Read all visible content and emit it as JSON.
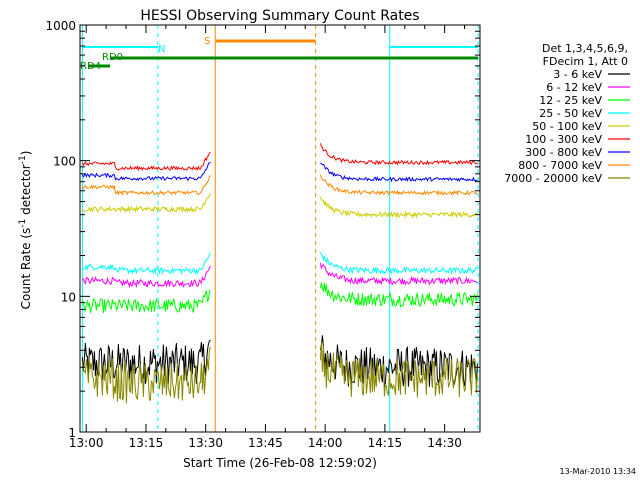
{
  "chart_data": {
    "type": "line",
    "title": "HESSI Observing Summary Count Rates",
    "ylabel_main": "Count Rate (s",
    "ylabel_sup1": "-1",
    "ylabel_mid": " detector",
    "ylabel_sup2": "-1",
    "ylabel_end": ")",
    "xlabel": "Start Time (26-Feb-08 12:59:02)",
    "footer": "13-Mar-2010 13:34",
    "y_scale": "log",
    "ylim": [
      1,
      1000
    ],
    "y_ticks": [
      {
        "value": 1,
        "label": "1"
      },
      {
        "value": 10,
        "label": "10"
      },
      {
        "value": 100,
        "label": "100"
      },
      {
        "value": 1000,
        "label": "1000"
      }
    ],
    "xlim_minutes": [
      12.97,
      38.4
    ],
    "x_ticks": [
      {
        "value": 13.0,
        "label": "13:00"
      },
      {
        "value": 13.25,
        "label": "13:15"
      },
      {
        "value": 13.5,
        "label": "13:30"
      },
      {
        "value": 13.75,
        "label": "13:45"
      },
      {
        "value": 14.0,
        "label": "14:00"
      },
      {
        "value": 14.25,
        "label": "14:15"
      },
      {
        "value": 14.5,
        "label": "14:30"
      }
    ],
    "x_range_hours": [
      12.984,
      14.64
    ],
    "legend": {
      "header": [
        "Det 1,3,4,5,6,9,",
        "FDecim 1, Att 0"
      ],
      "placement": "right"
    },
    "series": [
      {
        "name": "3 - 6 keV",
        "color": "#000000",
        "levels": [
          3.2,
          3.2,
          3.0
        ],
        "noise": 0.35
      },
      {
        "name": "6 - 12 keV",
        "color": "#ff00ff",
        "levels": [
          13,
          12.5,
          13
        ],
        "noise": 0.06
      },
      {
        "name": "12 - 25 keV",
        "color": "#00ff00",
        "levels": [
          8.5,
          8.5,
          9.5
        ],
        "noise": 0.12
      },
      {
        "name": "25 - 50 keV",
        "color": "#00ffff",
        "levels": [
          16.5,
          15.5,
          15.5
        ],
        "noise": 0.05
      },
      {
        "name": "50 - 100 keV",
        "color": "#cccc00",
        "levels": [
          44,
          44,
          40
        ],
        "noise": 0.04
      },
      {
        "name": "100 - 300 keV",
        "color": "#ff0000",
        "levels": [
          95,
          88,
          97
        ],
        "noise": 0.03
      },
      {
        "name": "300 - 800 keV",
        "color": "#0000ff",
        "levels": [
          78,
          74,
          73
        ],
        "noise": 0.03
      },
      {
        "name": "800 - 7000 keV",
        "color": "#ff8800",
        "levels": [
          64,
          58,
          58
        ],
        "noise": 0.03
      },
      {
        "name": "7000 - 20000 keV",
        "color": "#888800",
        "levels": [
          2.5,
          2.3,
          2.5
        ],
        "noise": 0.35
      }
    ],
    "data_gap_hours": [
      13.52,
      13.98
    ],
    "annotations": [
      {
        "label": "N",
        "color": "#00ffff"
      },
      {
        "label": "S",
        "color": "#ff8800"
      },
      {
        "label": "RD0",
        "color": "#008800"
      },
      {
        "label": "RD4",
        "color": "#008800"
      }
    ]
  }
}
